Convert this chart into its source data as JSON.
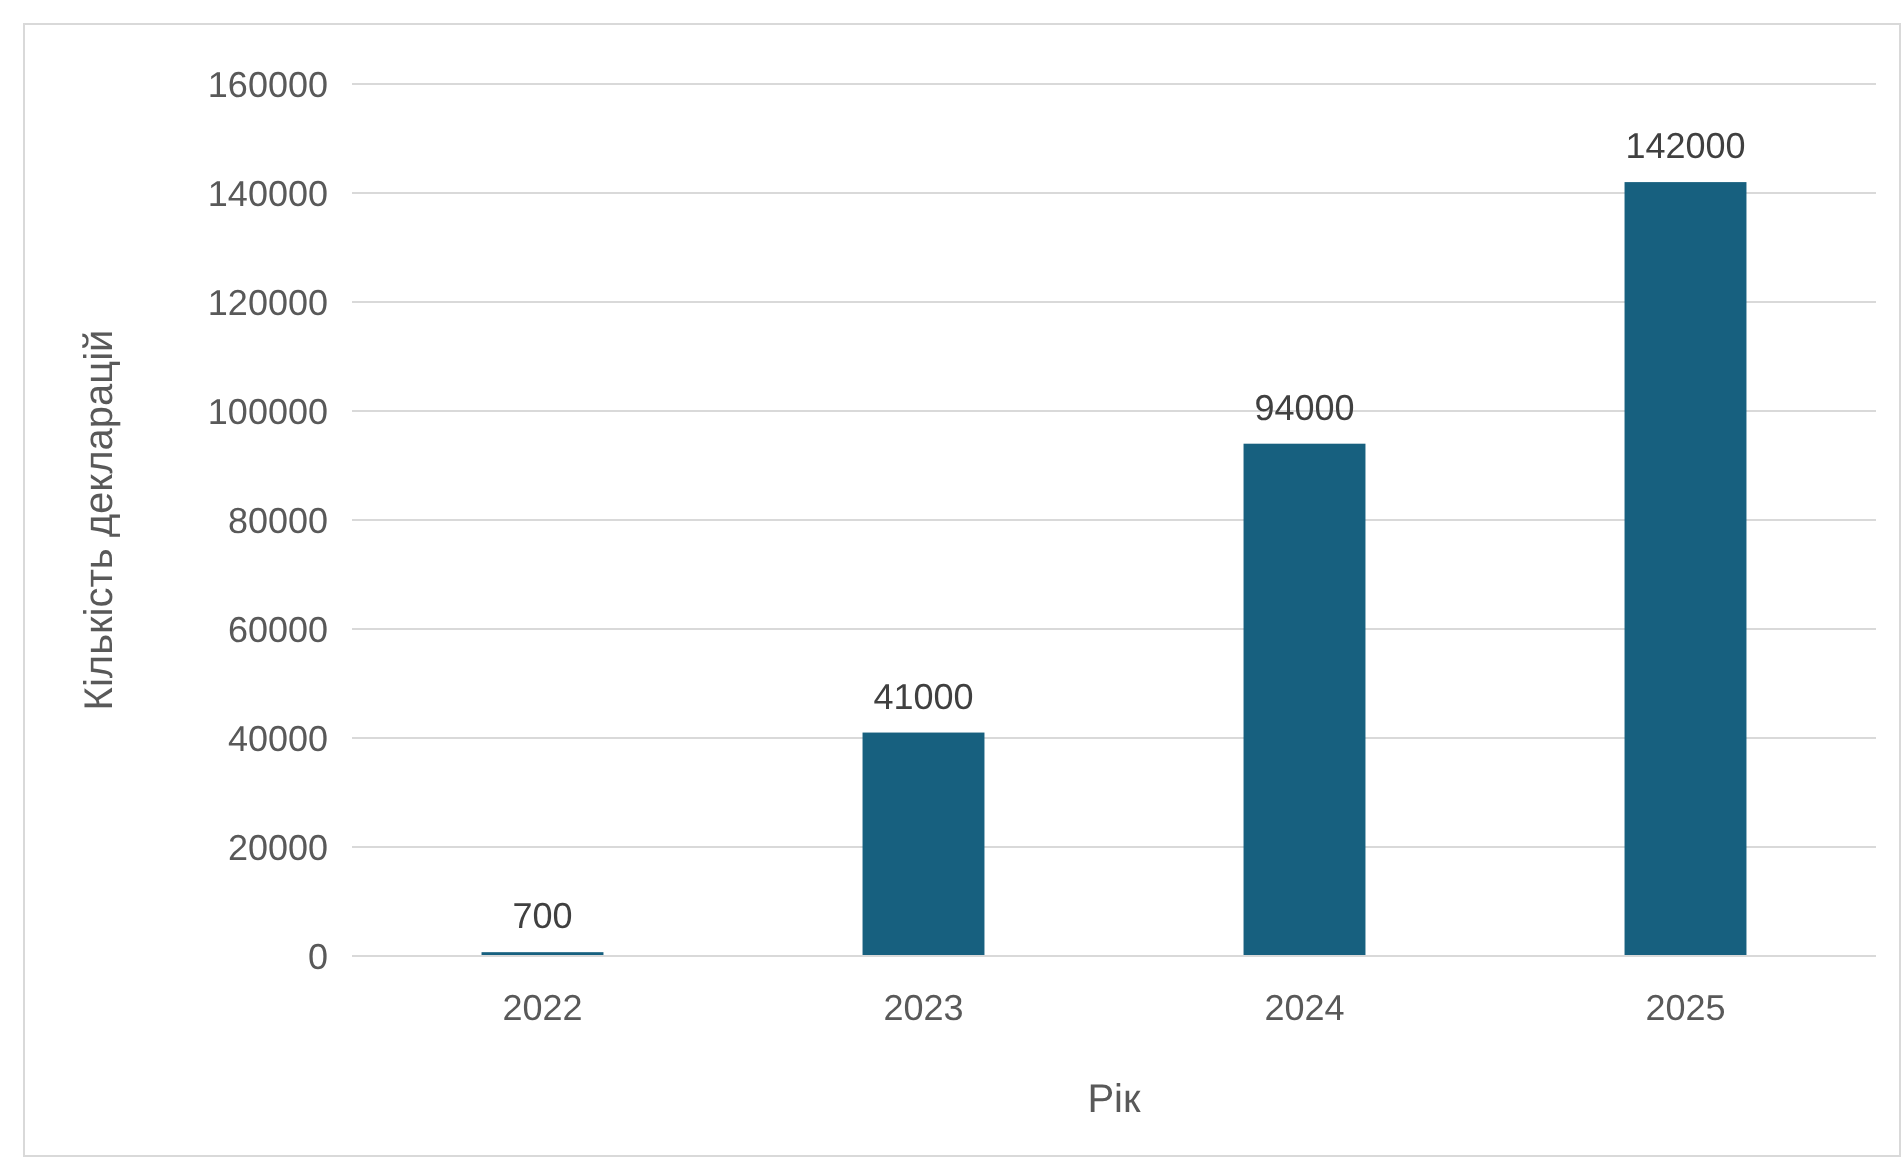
{
  "chart_data": {
    "type": "bar",
    "xlabel": "Рік",
    "ylabel": "Кількість декларацій",
    "categories": [
      "2022",
      "2023",
      "2024",
      "2025"
    ],
    "values": [
      700,
      41000,
      94000,
      142000
    ],
    "color": "#17607f",
    "ylim": [
      0,
      160000
    ],
    "yticks": [
      0,
      20000,
      40000,
      60000,
      80000,
      100000,
      120000,
      140000,
      160000
    ],
    "grid": "y",
    "data_labels": true
  }
}
